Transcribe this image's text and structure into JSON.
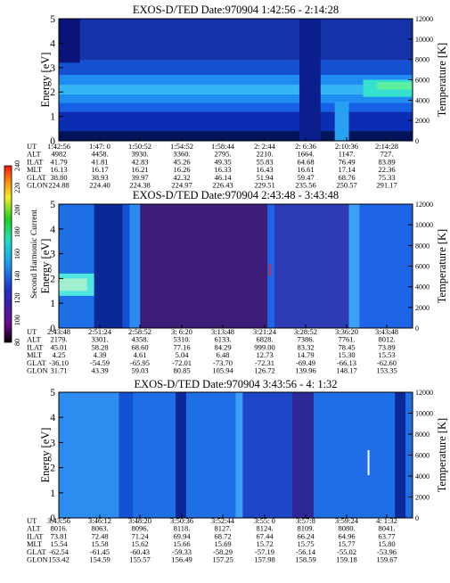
{
  "panels": [
    {
      "title": "EXOS-D/TED   Date:970904  1:42:56 - 2:14:28",
      "energy_label": "Energy [eV]",
      "temp_label": "Temperature [K]",
      "aux": {
        "labels": [
          "UT",
          "ALT",
          "ILAT",
          "MLT",
          "GLAT",
          "GLON"
        ],
        "columns": [
          [
            "1:42:56",
            "4982",
            "41.79",
            "16.13",
            "38.80",
            "224.88"
          ],
          [
            "1:47: 0",
            "4458.",
            "41.81",
            "16.17",
            "38.93",
            "224.40"
          ],
          [
            "1:50:52",
            "3930.",
            "42.83",
            "16.21",
            "39.97",
            "224.38"
          ],
          [
            "1:54:52",
            "3360.",
            "45.26",
            "16.26",
            "42.32",
            "224.97"
          ],
          [
            "1:58:44",
            "2795.",
            "49.35",
            "16.33",
            "46.14",
            "226.43"
          ],
          [
            "2: 2:44",
            "2210.",
            "55.83",
            "16.43",
            "51.94",
            "229.51"
          ],
          [
            "2: 6:36",
            "1664.",
            "64.68",
            "16.61",
            "59.47",
            "235.56"
          ],
          [
            "2:10:36",
            "1147.",
            "76.49",
            "17.14",
            "68.76",
            "250.57"
          ],
          [
            "2:14:28",
            "727.",
            "83.89",
            "22.36",
            "75.33",
            "291.17"
          ]
        ]
      }
    },
    {
      "title": "EXOS-D/TED   Date:970904  2:43:48 - 3:43:48",
      "energy_label": "Energy [eV]",
      "temp_label": "Temperature [K]",
      "aux": {
        "labels": [
          "UT",
          "ALT",
          "ILAT",
          "MLT",
          "GLAT",
          "GLON"
        ],
        "columns": [
          [
            "2:43:48",
            "2179.",
            "45.01",
            "4.25",
            "-36.10",
            "31.71"
          ],
          [
            "2:51:24",
            "3301.",
            "58.28",
            "4.39",
            "-54.59",
            "43.39"
          ],
          [
            "2:58:52",
            "4358.",
            "68.60",
            "4.61",
            "-65.95",
            "59.03"
          ],
          [
            "3: 6:20",
            "5310.",
            "77.16",
            "5.04",
            "-72.01",
            "80.85"
          ],
          [
            "3:13:48",
            "6133.",
            "84.29",
            "6.48",
            "-73.70",
            "105.94"
          ],
          [
            "3:21:24",
            "6828.",
            "999.00",
            "12.73",
            "-72.31",
            "126.72"
          ],
          [
            "3:28:52",
            "7386.",
            "83.32",
            "14.79",
            "-69.49",
            "139.96"
          ],
          [
            "3:36:20",
            "7761.",
            "78.45",
            "15.30",
            "-66.13",
            "148.17"
          ],
          [
            "3:43:48",
            "8012.",
            "73.89",
            "15.53",
            "-62.60",
            "153.35"
          ]
        ]
      }
    },
    {
      "title": "EXOS-D/TED   Date:970904  3:43:56 - 4: 1:32",
      "energy_label": "Energy [eV]",
      "temp_label": "Temperature [K]",
      "aux": {
        "labels": [
          "UT",
          "ALT",
          "ILAT",
          "MLT",
          "GLAT",
          "GLON"
        ],
        "columns": [
          [
            "3:43:56",
            "8016.",
            "73.81",
            "15.54",
            "-62.54",
            "153.42"
          ],
          [
            "3:46:12",
            "8063.",
            "72.48",
            "15.58",
            "-61.45",
            "154.59"
          ],
          [
            "3:48:20",
            "8096.",
            "71.24",
            "15.62",
            "-60.43",
            "155.57"
          ],
          [
            "3:50:36",
            "8118.",
            "69.94",
            "15.66",
            "-59.33",
            "156.49"
          ],
          [
            "3:52:44",
            "8127.",
            "68.72",
            "15.69",
            "-58.29",
            "157.25"
          ],
          [
            "3:55: 0",
            "8124.",
            "67.44",
            "15.72",
            "-57.19",
            "157.98"
          ],
          [
            "3:57:8",
            "8109.",
            "66.24",
            "15.75",
            "-56.14",
            "158.59"
          ],
          [
            "3:59:24",
            "8080.",
            "64.96",
            "15.77",
            "-55.02",
            "159.18"
          ],
          [
            "4: 1:32",
            "8041.",
            "63.77",
            "15.80",
            "-53.96",
            "159.67"
          ]
        ]
      }
    }
  ],
  "colorbar": {
    "label": "Second Harmonic Current",
    "ticks": [
      "80",
      "100",
      "120",
      "140",
      "160",
      "180",
      "200",
      "220",
      "240"
    ]
  },
  "chart_data": [
    {
      "type": "heatmap",
      "title": "EXOS-D/TED   Date:970904  1:42:56 - 2:14:28",
      "ylabel": "Energy [eV]",
      "ylabel_right": "Temperature [K]",
      "ylim": [
        0,
        5
      ],
      "yticks": [
        0,
        1,
        2,
        3,
        4,
        5
      ],
      "ylim_right": [
        0,
        12000
      ],
      "yticks_right": [
        0,
        2000,
        4000,
        6000,
        8000,
        10000,
        12000
      ],
      "x_ticks": [
        "1:42:56",
        "1:47: 0",
        "1:50:52",
        "1:54:52",
        "1:58:44",
        "2: 2:44",
        "2: 6:36",
        "2:10:36",
        "2:14:28"
      ],
      "bands": [
        {
          "e0": 0.0,
          "e1": 0.4,
          "color": "#00145a"
        },
        {
          "e0": 0.4,
          "e1": 1.2,
          "color": "#0a2db4"
        },
        {
          "e0": 1.2,
          "e1": 1.55,
          "color": "#1460e6"
        },
        {
          "e0": 1.55,
          "e1": 1.9,
          "color": "#1e8cf0"
        },
        {
          "e0": 1.9,
          "e1": 2.3,
          "color": "#32b4f5"
        },
        {
          "e0": 2.3,
          "e1": 2.7,
          "color": "#1e8cf0"
        },
        {
          "e0": 2.7,
          "e1": 3.3,
          "color": "#1450d2"
        },
        {
          "e0": 3.3,
          "e1": 5.0,
          "color": "#1432aa"
        }
      ],
      "features": [
        {
          "t0": 0.0,
          "t1": 0.06,
          "e0": 3.2,
          "e1": 5.0,
          "color": "#0a1478"
        },
        {
          "t0": 0.68,
          "t1": 0.74,
          "e0": 0.0,
          "e1": 5.0,
          "color": "#0a1e8c"
        },
        {
          "t0": 0.78,
          "t1": 0.82,
          "e0": 0.0,
          "e1": 1.6,
          "color": "#2aa0f0"
        },
        {
          "t0": 0.86,
          "t1": 1.0,
          "e0": 1.8,
          "e1": 2.5,
          "color": "#34e0d0"
        },
        {
          "t0": 0.9,
          "t1": 1.0,
          "e0": 2.1,
          "e1": 2.4,
          "color": "#5cf0a0"
        }
      ]
    },
    {
      "type": "heatmap",
      "title": "EXOS-D/TED   Date:970904  2:43:48 - 3:43:48",
      "ylabel": "Energy [eV]",
      "ylabel_right": "Temperature [K]",
      "ylim": [
        0,
        5
      ],
      "yticks": [
        0,
        1,
        2,
        3,
        4,
        5
      ],
      "ylim_right": [
        0,
        12000
      ],
      "yticks_right": [
        0,
        2000,
        4000,
        6000,
        8000,
        10000,
        12000
      ],
      "x_ticks": [
        "2:43:48",
        "2:51:24",
        "2:58:52",
        "3: 6:20",
        "3:13:48",
        "3:21:24",
        "3:28:52",
        "3:36:20",
        "3:43:48"
      ],
      "bands": [
        {
          "e0": 0.0,
          "e1": 5.0,
          "color": "#1450d2"
        }
      ],
      "features": [
        {
          "t0": 0.0,
          "t1": 0.1,
          "e0": 0.0,
          "e1": 5.0,
          "color": "#1e6ee6"
        },
        {
          "t0": 0.0,
          "t1": 0.1,
          "e0": 1.3,
          "e1": 2.2,
          "color": "#50e6e0"
        },
        {
          "t0": 0.0,
          "t1": 0.08,
          "e0": 1.5,
          "e1": 2.0,
          "color": "#a0f0d0"
        },
        {
          "t0": 0.1,
          "t1": 0.18,
          "e0": 0.0,
          "e1": 5.0,
          "color": "#0a2896"
        },
        {
          "t0": 0.2,
          "t1": 0.23,
          "e0": 0.0,
          "e1": 5.0,
          "color": "#2a8cf0"
        },
        {
          "t0": 0.23,
          "t1": 0.59,
          "e0": 0.0,
          "e1": 5.0,
          "color": "#3c1e78"
        },
        {
          "t0": 0.59,
          "t1": 0.61,
          "e0": 0.0,
          "e1": 5.0,
          "color": "#1e64e6"
        },
        {
          "t0": 0.61,
          "t1": 0.82,
          "e0": 0.0,
          "e1": 5.0,
          "color": "#2d3cb4"
        },
        {
          "t0": 0.82,
          "t1": 0.85,
          "e0": 0.0,
          "e1": 5.0,
          "color": "#3ca0f5"
        },
        {
          "t0": 0.85,
          "t1": 1.0,
          "e0": 0.0,
          "e1": 5.0,
          "color": "#1e64e6"
        },
        {
          "t0": 0.594,
          "t1": 0.598,
          "e0": 2.1,
          "e1": 2.6,
          "color": "#ff2020"
        }
      ]
    },
    {
      "type": "heatmap",
      "title": "EXOS-D/TED   Date:970904  3:43:56 - 4: 1:32",
      "ylabel": "Energy [eV]",
      "ylabel_right": "Temperature [K]",
      "ylim": [
        0,
        5
      ],
      "yticks": [
        0,
        1,
        2,
        3,
        4,
        5
      ],
      "ylim_right": [
        0,
        12000
      ],
      "yticks_right": [
        0,
        2000,
        4000,
        6000,
        8000,
        10000,
        12000
      ],
      "x_ticks": [
        "3:43:56",
        "3:46:12",
        "3:48:20",
        "3:50:36",
        "3:52:44",
        "3:55: 0",
        "3:57:8",
        "3:59:24",
        "4: 1:32"
      ],
      "bands": [
        {
          "e0": 0.0,
          "e1": 5.0,
          "color": "#1e6ee6"
        }
      ],
      "features": [
        {
          "t0": 0.0,
          "t1": 0.17,
          "e0": 0.0,
          "e1": 5.0,
          "color": "#2d8cf0"
        },
        {
          "t0": 0.17,
          "t1": 0.21,
          "e0": 0.0,
          "e1": 5.0,
          "color": "#1450d2"
        },
        {
          "t0": 0.33,
          "t1": 0.36,
          "e0": 0.0,
          "e1": 5.0,
          "color": "#0a2896"
        },
        {
          "t0": 0.5,
          "t1": 0.52,
          "e0": 0.0,
          "e1": 5.0,
          "color": "#3ca0f5"
        },
        {
          "t0": 0.52,
          "t1": 0.72,
          "e0": 0.0,
          "e1": 5.0,
          "color": "#1e46c8"
        },
        {
          "t0": 0.66,
          "t1": 0.72,
          "e0": 0.0,
          "e1": 5.0,
          "color": "#2d2896"
        },
        {
          "t0": 0.95,
          "t1": 0.98,
          "e0": 0.0,
          "e1": 5.0,
          "color": "#0a2896"
        },
        {
          "t0": 0.873,
          "t1": 0.878,
          "e0": 1.7,
          "e1": 2.7,
          "color": "#ffffff"
        }
      ]
    }
  ]
}
